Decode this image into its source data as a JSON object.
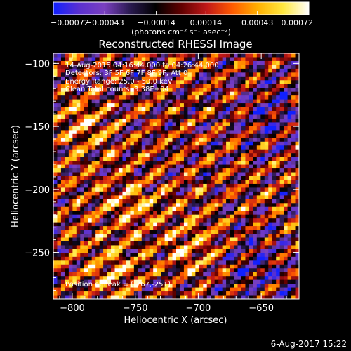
{
  "chart_data": {
    "type": "heatmap",
    "title": "Reconstructed RHESSI Image",
    "xlabel": "Heliocentric X (arcsec)",
    "ylabel": "Heliocentric Y (arcsec)",
    "xlim": [
      -815,
      -620
    ],
    "ylim": [
      -287,
      -92
    ],
    "x_ticks": [
      {
        "value": -800,
        "label": "−800"
      },
      {
        "value": -750,
        "label": "−750"
      },
      {
        "value": -700,
        "label": "−700"
      },
      {
        "value": -650,
        "label": "−650"
      }
    ],
    "y_ticks": [
      {
        "value": -100,
        "label": "−100"
      },
      {
        "value": -150,
        "label": "−150"
      },
      {
        "value": -200,
        "label": "−200"
      },
      {
        "value": -250,
        "label": "−250"
      }
    ],
    "colorbar": {
      "range": [
        -0.00072,
        0.00072
      ],
      "ticks": [
        {
          "value": -0.00072,
          "label": "−0.00072"
        },
        {
          "value": -0.00043,
          "label": "−0.00043"
        },
        {
          "value": -0.00014,
          "label": "−0.00014"
        },
        {
          "value": 0.00014,
          "label": "0.00014"
        },
        {
          "value": 0.00043,
          "label": "0.00043"
        },
        {
          "value": 0.00072,
          "label": "0.00072"
        }
      ],
      "units_label": "(photons cm⁻² s⁻¹ asec⁻²)",
      "colors": [
        "#1020ff",
        "#5a30d0",
        "#7a40c0",
        "#2a1a50",
        "#000000",
        "#600000",
        "#c01818",
        "#ff5a00",
        "#ffb000",
        "#ffe840",
        "#ffffff"
      ]
    },
    "annotations": {
      "time_range": "14-Aug-2015 04:16:44.000 to 04:26:44.000",
      "detectors": "Detectors: 3F 5F 6F 7F 8F 9F, Att 0",
      "energy_range": "Energy Range: 25.0 - 50.0 keV",
      "clean": "Clean     Total counts: 3.38E+04",
      "peak": "Position of Peak = [-767,-251]"
    },
    "grid": false,
    "legend": "none",
    "image_model": {
      "grid_size": 64,
      "stripe_orientation_deg": 35,
      "stripe_period_arcsec": 16,
      "bright_regions": [
        {
          "x": -750,
          "y": -210
        },
        {
          "x": -770,
          "y": -265
        },
        {
          "x": -705,
          "y": -245
        },
        {
          "x": -790,
          "y": -150
        }
      ],
      "faint_regions": [
        {
          "x": -650,
          "y": -260
        },
        {
          "x": -640,
          "y": -140
        }
      ]
    }
  },
  "footer": {
    "timestamp": "6-Aug-2017 15:22"
  }
}
